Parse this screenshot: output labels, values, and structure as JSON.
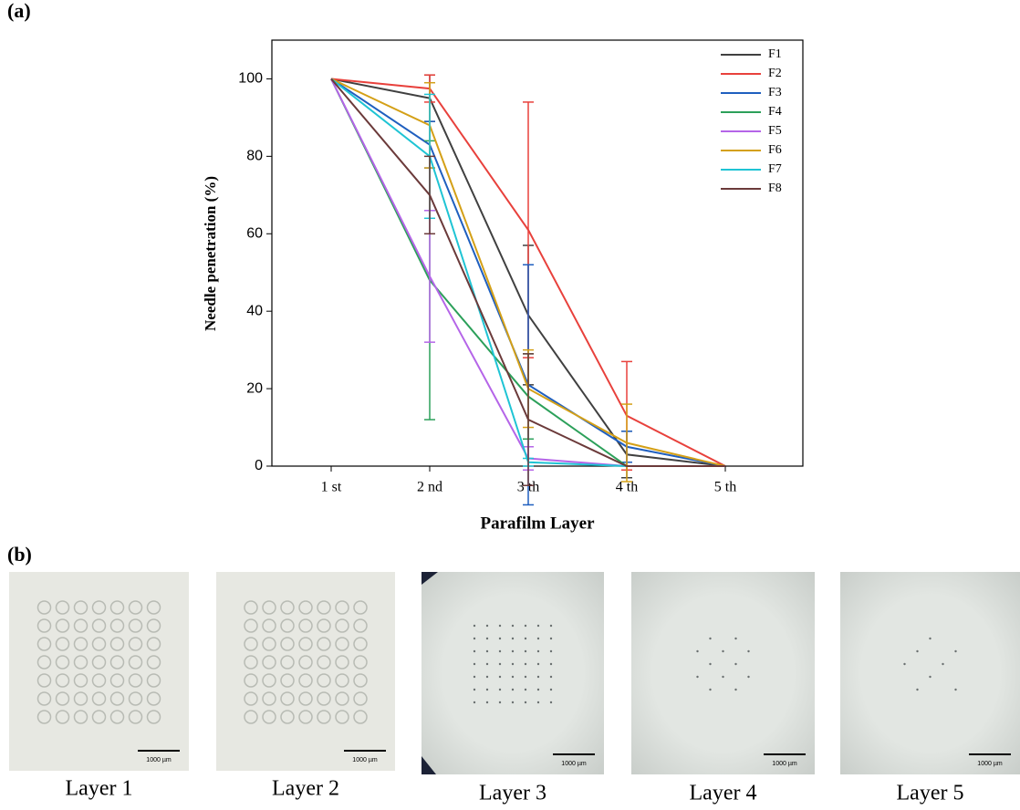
{
  "panels": {
    "a": "(a)",
    "b": "(b)"
  },
  "chart_data": {
    "type": "line",
    "xlabel": "Parafilm Layer",
    "ylabel": "Needle penetration (%)",
    "categories": [
      "1 st",
      "2 nd",
      "3 th",
      "4 th",
      "5 th"
    ],
    "ylim": [
      0,
      110
    ],
    "yticks": [
      0,
      20,
      40,
      60,
      80,
      100
    ],
    "legend": "upper right",
    "series": [
      {
        "name": "F1",
        "color": "#404040",
        "values": [
          100,
          95,
          39,
          3,
          0
        ],
        "errors": [
          0,
          6,
          18,
          6,
          0
        ]
      },
      {
        "name": "F2",
        "color": "#e8413c",
        "values": [
          100,
          97.5,
          61,
          13,
          0
        ],
        "errors": [
          0,
          3.5,
          33,
          14,
          0
        ]
      },
      {
        "name": "F3",
        "color": "#1f5fbf",
        "values": [
          100,
          83,
          21,
          5,
          0
        ],
        "errors": [
          0,
          6,
          31,
          4,
          0
        ]
      },
      {
        "name": "F4",
        "color": "#2ca05a",
        "values": [
          100,
          48,
          18,
          0,
          0
        ],
        "errors": [
          0,
          36,
          11,
          0,
          0
        ]
      },
      {
        "name": "F5",
        "color": "#b565e8",
        "values": [
          100,
          49,
          2,
          0,
          0
        ],
        "errors": [
          0,
          17,
          3,
          0,
          0
        ]
      },
      {
        "name": "F6",
        "color": "#d4a017",
        "values": [
          100,
          88,
          20,
          6,
          0
        ],
        "errors": [
          0,
          11,
          10,
          10,
          0
        ]
      },
      {
        "name": "F7",
        "color": "#1fc4d4",
        "values": [
          100,
          80,
          1,
          0,
          0
        ],
        "errors": [
          0,
          16,
          1,
          0,
          0
        ]
      },
      {
        "name": "F8",
        "color": "#6b3a3a",
        "values": [
          100,
          70,
          12,
          0,
          0
        ],
        "errors": [
          0,
          10,
          17,
          0,
          0
        ]
      }
    ]
  },
  "images": [
    {
      "caption": "Layer 1",
      "scale": "1000 µm"
    },
    {
      "caption": "Layer 2",
      "scale": "1000 µm"
    },
    {
      "caption": "Layer 3",
      "scale": "1000 µm"
    },
    {
      "caption": "Layer 4",
      "scale": "1000 µm"
    },
    {
      "caption": "Layer 5",
      "scale": "1000 µm"
    }
  ]
}
